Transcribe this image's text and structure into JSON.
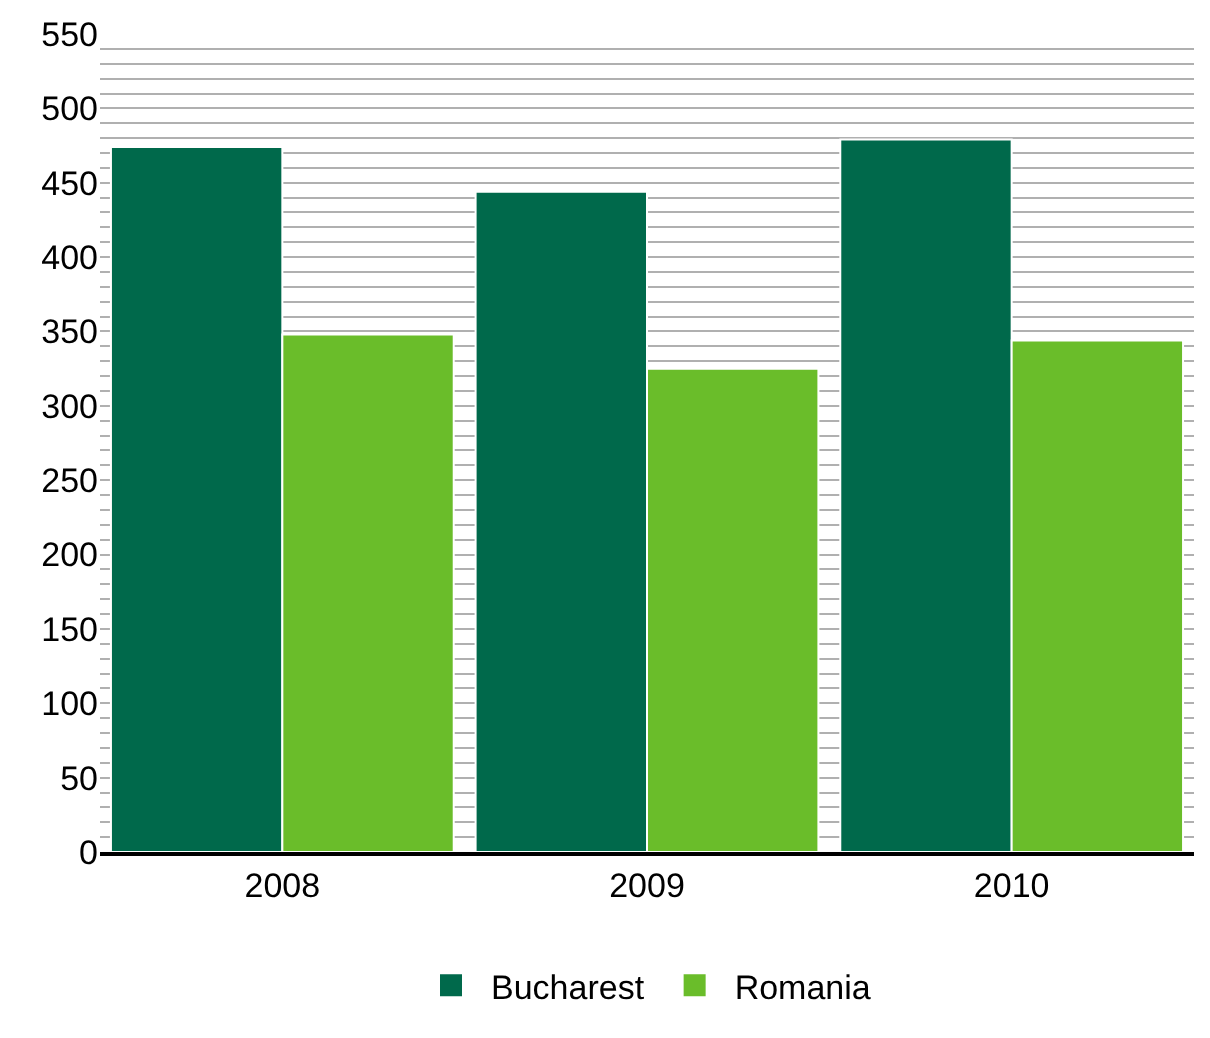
{
  "chart_data": {
    "type": "bar",
    "categories": [
      "2008",
      "2009",
      "2010"
    ],
    "series": [
      {
        "name": "Bucharest",
        "color": "#00694b",
        "values": [
          474,
          444,
          479
        ]
      },
      {
        "name": "Romania",
        "color": "#6abd2a",
        "values": [
          348,
          325,
          344
        ]
      }
    ],
    "ylim": [
      0,
      550
    ],
    "yticks": [
      0,
      {
        "value": 10,
        "label": null
      },
      {
        "value": 20,
        "label": null
      },
      {
        "value": 30,
        "label": null
      },
      {
        "value": 40,
        "label": null
      },
      50,
      {
        "value": 60,
        "label": null
      },
      {
        "value": 70,
        "label": null
      },
      {
        "value": 80,
        "label": null
      },
      {
        "value": 90,
        "label": null
      },
      100,
      {
        "value": 110,
        "label": null
      },
      {
        "value": 120,
        "label": null
      },
      {
        "value": 130,
        "label": null
      },
      {
        "value": 140,
        "label": null
      },
      150,
      {
        "value": 160,
        "label": null
      },
      {
        "value": 170,
        "label": null
      },
      {
        "value": 180,
        "label": null
      },
      {
        "value": 190,
        "label": null
      },
      200,
      {
        "value": 210,
        "label": null
      },
      {
        "value": 220,
        "label": null
      },
      {
        "value": 230,
        "label": null
      },
      {
        "value": 240,
        "label": null
      },
      250,
      {
        "value": 260,
        "label": null
      },
      {
        "value": 270,
        "label": null
      },
      {
        "value": 280,
        "label": null
      },
      {
        "value": 290,
        "label": null
      },
      300,
      {
        "value": 310,
        "label": null
      },
      {
        "value": 320,
        "label": null
      },
      {
        "value": 330,
        "label": null
      },
      {
        "value": 340,
        "label": null
      },
      350,
      {
        "value": 360,
        "label": null
      },
      {
        "value": 370,
        "label": null
      },
      {
        "value": 380,
        "label": null
      },
      {
        "value": 390,
        "label": null
      },
      400,
      {
        "value": 410,
        "label": null
      },
      {
        "value": 420,
        "label": null
      },
      {
        "value": 430,
        "label": null
      },
      {
        "value": 440,
        "label": null
      },
      450,
      {
        "value": 460,
        "label": null
      },
      {
        "value": 470,
        "label": null
      },
      {
        "value": 480,
        "label": null
      },
      {
        "value": 490,
        "label": null
      },
      500,
      {
        "value": 510,
        "label": null
      },
      {
        "value": 520,
        "label": null
      },
      {
        "value": 530,
        "label": null
      },
      {
        "value": 540,
        "label": null
      },
      550
    ],
    "grid": "y",
    "legend": "bottom"
  }
}
